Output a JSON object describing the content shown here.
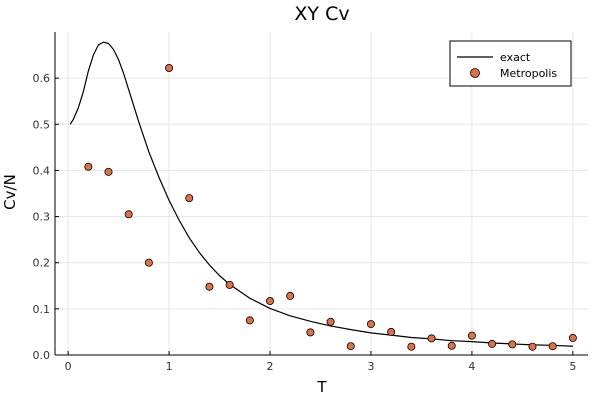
{
  "chart_data": {
    "type": "line",
    "title": "XY Cv",
    "xlabel": "T",
    "ylabel": "Cv/N",
    "xlim": [
      -0.13,
      5.15
    ],
    "ylim": [
      0.0,
      0.7
    ],
    "xticks": [
      0,
      1,
      2,
      3,
      4,
      5
    ],
    "xtick_labels": [
      "0",
      "1",
      "2",
      "3",
      "4",
      "5"
    ],
    "yticks": [
      0.0,
      0.1,
      0.2,
      0.3,
      0.4,
      0.5,
      0.6
    ],
    "ytick_labels": [
      "0.0",
      "0.1",
      "0.2",
      "0.3",
      "0.4",
      "0.5",
      "0.6"
    ],
    "grid": true,
    "legend_position": "top-right",
    "colors": {
      "exact": "#000000",
      "metropolis": "#e26f46",
      "metropolis_edge": "#000000"
    },
    "series": [
      {
        "name": "exact",
        "kind": "line",
        "x": [
          0.02,
          0.05,
          0.1,
          0.15,
          0.2,
          0.25,
          0.3,
          0.35,
          0.4,
          0.45,
          0.5,
          0.55,
          0.6,
          0.7,
          0.8,
          0.9,
          1.0,
          1.1,
          1.2,
          1.3,
          1.4,
          1.5,
          1.6,
          1.8,
          2.0,
          2.2,
          2.4,
          2.6,
          2.8,
          3.0,
          3.2,
          3.4,
          3.6,
          3.8,
          4.0,
          4.2,
          4.4,
          4.6,
          4.8,
          5.0
        ],
        "y": [
          0.5,
          0.51,
          0.535,
          0.57,
          0.615,
          0.65,
          0.672,
          0.678,
          0.675,
          0.662,
          0.64,
          0.61,
          0.575,
          0.505,
          0.44,
          0.385,
          0.335,
          0.292,
          0.254,
          0.222,
          0.195,
          0.172,
          0.153,
          0.123,
          0.101,
          0.085,
          0.073,
          0.063,
          0.055,
          0.048,
          0.043,
          0.038,
          0.035,
          0.031,
          0.029,
          0.026,
          0.024,
          0.022,
          0.021,
          0.019
        ]
      },
      {
        "name": "Metropolis",
        "kind": "scatter",
        "x": [
          0.2,
          0.4,
          0.6,
          0.8,
          1.0,
          1.2,
          1.4,
          1.6,
          1.8,
          2.0,
          2.2,
          2.4,
          2.6,
          2.8,
          3.0,
          3.2,
          3.4,
          3.6,
          3.8,
          4.0,
          4.2,
          4.4,
          4.6,
          4.8,
          5.0
        ],
        "y": [
          0.408,
          0.397,
          0.305,
          0.2,
          0.622,
          0.34,
          0.148,
          0.152,
          0.075,
          0.117,
          0.128,
          0.049,
          0.072,
          0.019,
          0.067,
          0.05,
          0.018,
          0.036,
          0.02,
          0.042,
          0.024,
          0.023,
          0.018,
          0.019,
          0.037
        ]
      }
    ],
    "legend": [
      "exact",
      "Metropolis"
    ]
  }
}
